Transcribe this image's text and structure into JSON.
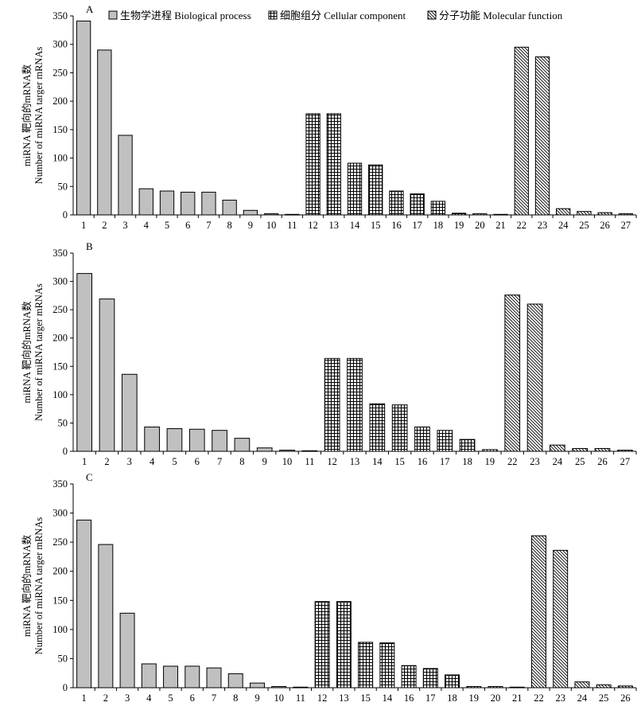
{
  "legend": {
    "items": [
      {
        "label": "生物学进程 Biological process",
        "pattern": "solid-gray"
      },
      {
        "label": "细胞组分 Cellular component",
        "pattern": "grid"
      },
      {
        "label": "分子功能 Molecular function",
        "pattern": "diagonal"
      }
    ]
  },
  "colors": {
    "bp_fill": "#c0c0c0",
    "stroke": "#000000",
    "background": "#ffffff"
  },
  "chart_data": [
    {
      "type": "bar",
      "panel_label": "A",
      "ylabel_cn": "miRNA 靶向的mRNA数",
      "ylabel_en": "Number of miRNA targer mRNAs",
      "ylim": [
        0,
        350
      ],
      "yticks": [
        0,
        50,
        100,
        150,
        200,
        250,
        300,
        350
      ],
      "categories": [
        "1",
        "2",
        "3",
        "4",
        "5",
        "6",
        "7",
        "8",
        "9",
        "10",
        "11",
        "12",
        "13",
        "14",
        "15",
        "16",
        "17",
        "18",
        "19",
        "20",
        "21",
        "22",
        "23",
        "24",
        "25",
        "26",
        "27"
      ],
      "values": [
        341,
        290,
        140,
        46,
        42,
        40,
        40,
        26,
        8,
        2,
        1,
        178,
        178,
        91,
        88,
        42,
        37,
        24,
        3,
        2,
        1,
        295,
        278,
        11,
        6,
        4,
        2
      ],
      "groups": [
        "bp",
        "bp",
        "bp",
        "bp",
        "bp",
        "bp",
        "bp",
        "bp",
        "bp",
        "bp",
        "bp",
        "cc",
        "cc",
        "cc",
        "cc",
        "cc",
        "cc",
        "cc",
        "cc",
        "cc",
        "cc",
        "mf",
        "mf",
        "mf",
        "mf",
        "mf",
        "mf"
      ]
    },
    {
      "type": "bar",
      "panel_label": "B",
      "ylabel_cn": "miRNA 靶向的mRNA数",
      "ylabel_en": "Number of miRNA targer mRNAs",
      "ylim": [
        0,
        350
      ],
      "yticks": [
        0,
        50,
        100,
        150,
        200,
        250,
        300,
        350
      ],
      "categories": [
        "1",
        "2",
        "3",
        "4",
        "5",
        "6",
        "7",
        "8",
        "9",
        "10",
        "11",
        "12",
        "13",
        "14",
        "15",
        "16",
        "17",
        "18",
        "19",
        "22",
        "23",
        "24",
        "25",
        "26",
        "27"
      ],
      "values": [
        314,
        269,
        136,
        43,
        40,
        39,
        37,
        23,
        6,
        2,
        1,
        164,
        164,
        84,
        82,
        43,
        37,
        21,
        3,
        276,
        260,
        11,
        5,
        5,
        2
      ],
      "groups": [
        "bp",
        "bp",
        "bp",
        "bp",
        "bp",
        "bp",
        "bp",
        "bp",
        "bp",
        "bp",
        "bp",
        "cc",
        "cc",
        "cc",
        "cc",
        "cc",
        "cc",
        "cc",
        "cc",
        "mf",
        "mf",
        "mf",
        "mf",
        "mf",
        "mf"
      ]
    },
    {
      "type": "bar",
      "panel_label": "C",
      "ylabel_cn": "miRNA 靶向的mRNA数",
      "ylabel_en": "Number of miRNA targer mRNAs",
      "ylim": [
        0,
        350
      ],
      "yticks": [
        0,
        50,
        100,
        150,
        200,
        250,
        300,
        350
      ],
      "categories": [
        "1",
        "2",
        "3",
        "4",
        "5",
        "6",
        "7",
        "8",
        "9",
        "10",
        "11",
        "12",
        "13",
        "15",
        "14",
        "16",
        "17",
        "18",
        "19",
        "20",
        "21",
        "22",
        "23",
        "24",
        "25",
        "26"
      ],
      "values": [
        288,
        246,
        128,
        41,
        37,
        37,
        34,
        24,
        8,
        2,
        1,
        148,
        148,
        78,
        77,
        38,
        33,
        22,
        2,
        2,
        1,
        261,
        236,
        10,
        5,
        3
      ],
      "groups": [
        "bp",
        "bp",
        "bp",
        "bp",
        "bp",
        "bp",
        "bp",
        "bp",
        "bp",
        "bp",
        "bp",
        "cc",
        "cc",
        "cc",
        "cc",
        "cc",
        "cc",
        "cc",
        "cc",
        "cc",
        "cc",
        "mf",
        "mf",
        "mf",
        "mf",
        "mf"
      ]
    }
  ]
}
